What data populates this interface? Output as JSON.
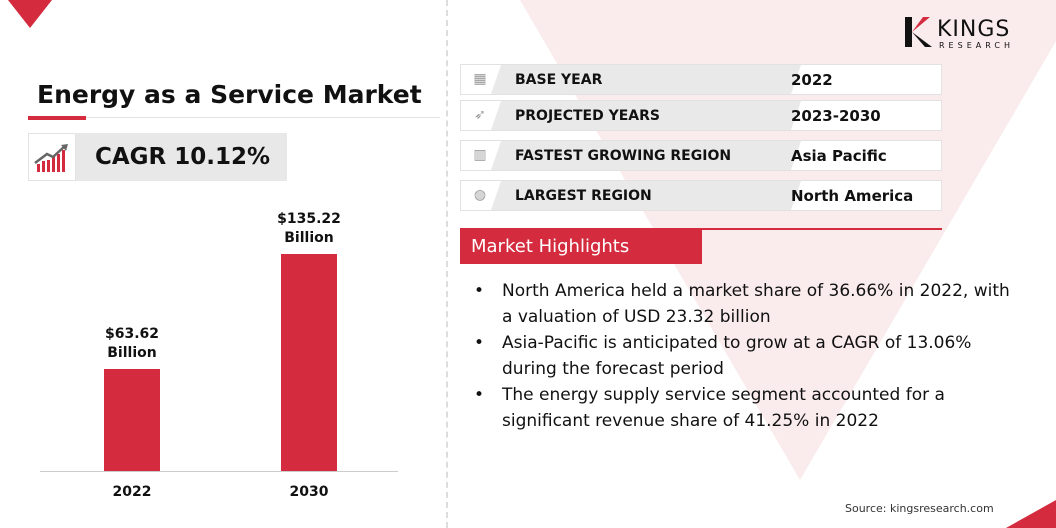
{
  "title": "Energy as a Service Market",
  "cagr": "CAGR 10.12%",
  "colors": {
    "accent": "#d42b3e",
    "panel": "#e9e9e9"
  },
  "chart_data": {
    "type": "bar",
    "categories": [
      "2022",
      "2030"
    ],
    "values": [
      63.62,
      135.22
    ],
    "data_labels": [
      [
        "$63.62",
        "Billion"
      ],
      [
        "$135.22",
        "Billion"
      ]
    ],
    "ylim": [
      0,
      140
    ],
    "grid": false
  },
  "info": [
    {
      "icon": "calendar-clock-icon",
      "label": "BASE YEAR",
      "value": "2022"
    },
    {
      "icon": "rocket-icon",
      "label": "PROJECTED YEARS",
      "value": "2023-2030"
    },
    {
      "icon": "city-growth-icon",
      "label": "FASTEST GROWING REGION",
      "value": "Asia Pacific"
    },
    {
      "icon": "globe-icon",
      "label": "LARGEST REGION",
      "value": "North America"
    }
  ],
  "highlights_title": "Market Highlights",
  "highlights": [
    "North America held a market share of 36.66% in 2022, with a valuation of USD 23.32 billion",
    "Asia-Pacific is anticipated to grow at a CAGR of 13.06% during the forecast period",
    "The energy supply service segment accounted for a significant revenue share of 41.25% in 2022"
  ],
  "logo": {
    "name": "KINGS",
    "sub": "RESEARCH"
  },
  "source": "Source: kingsresearch.com"
}
